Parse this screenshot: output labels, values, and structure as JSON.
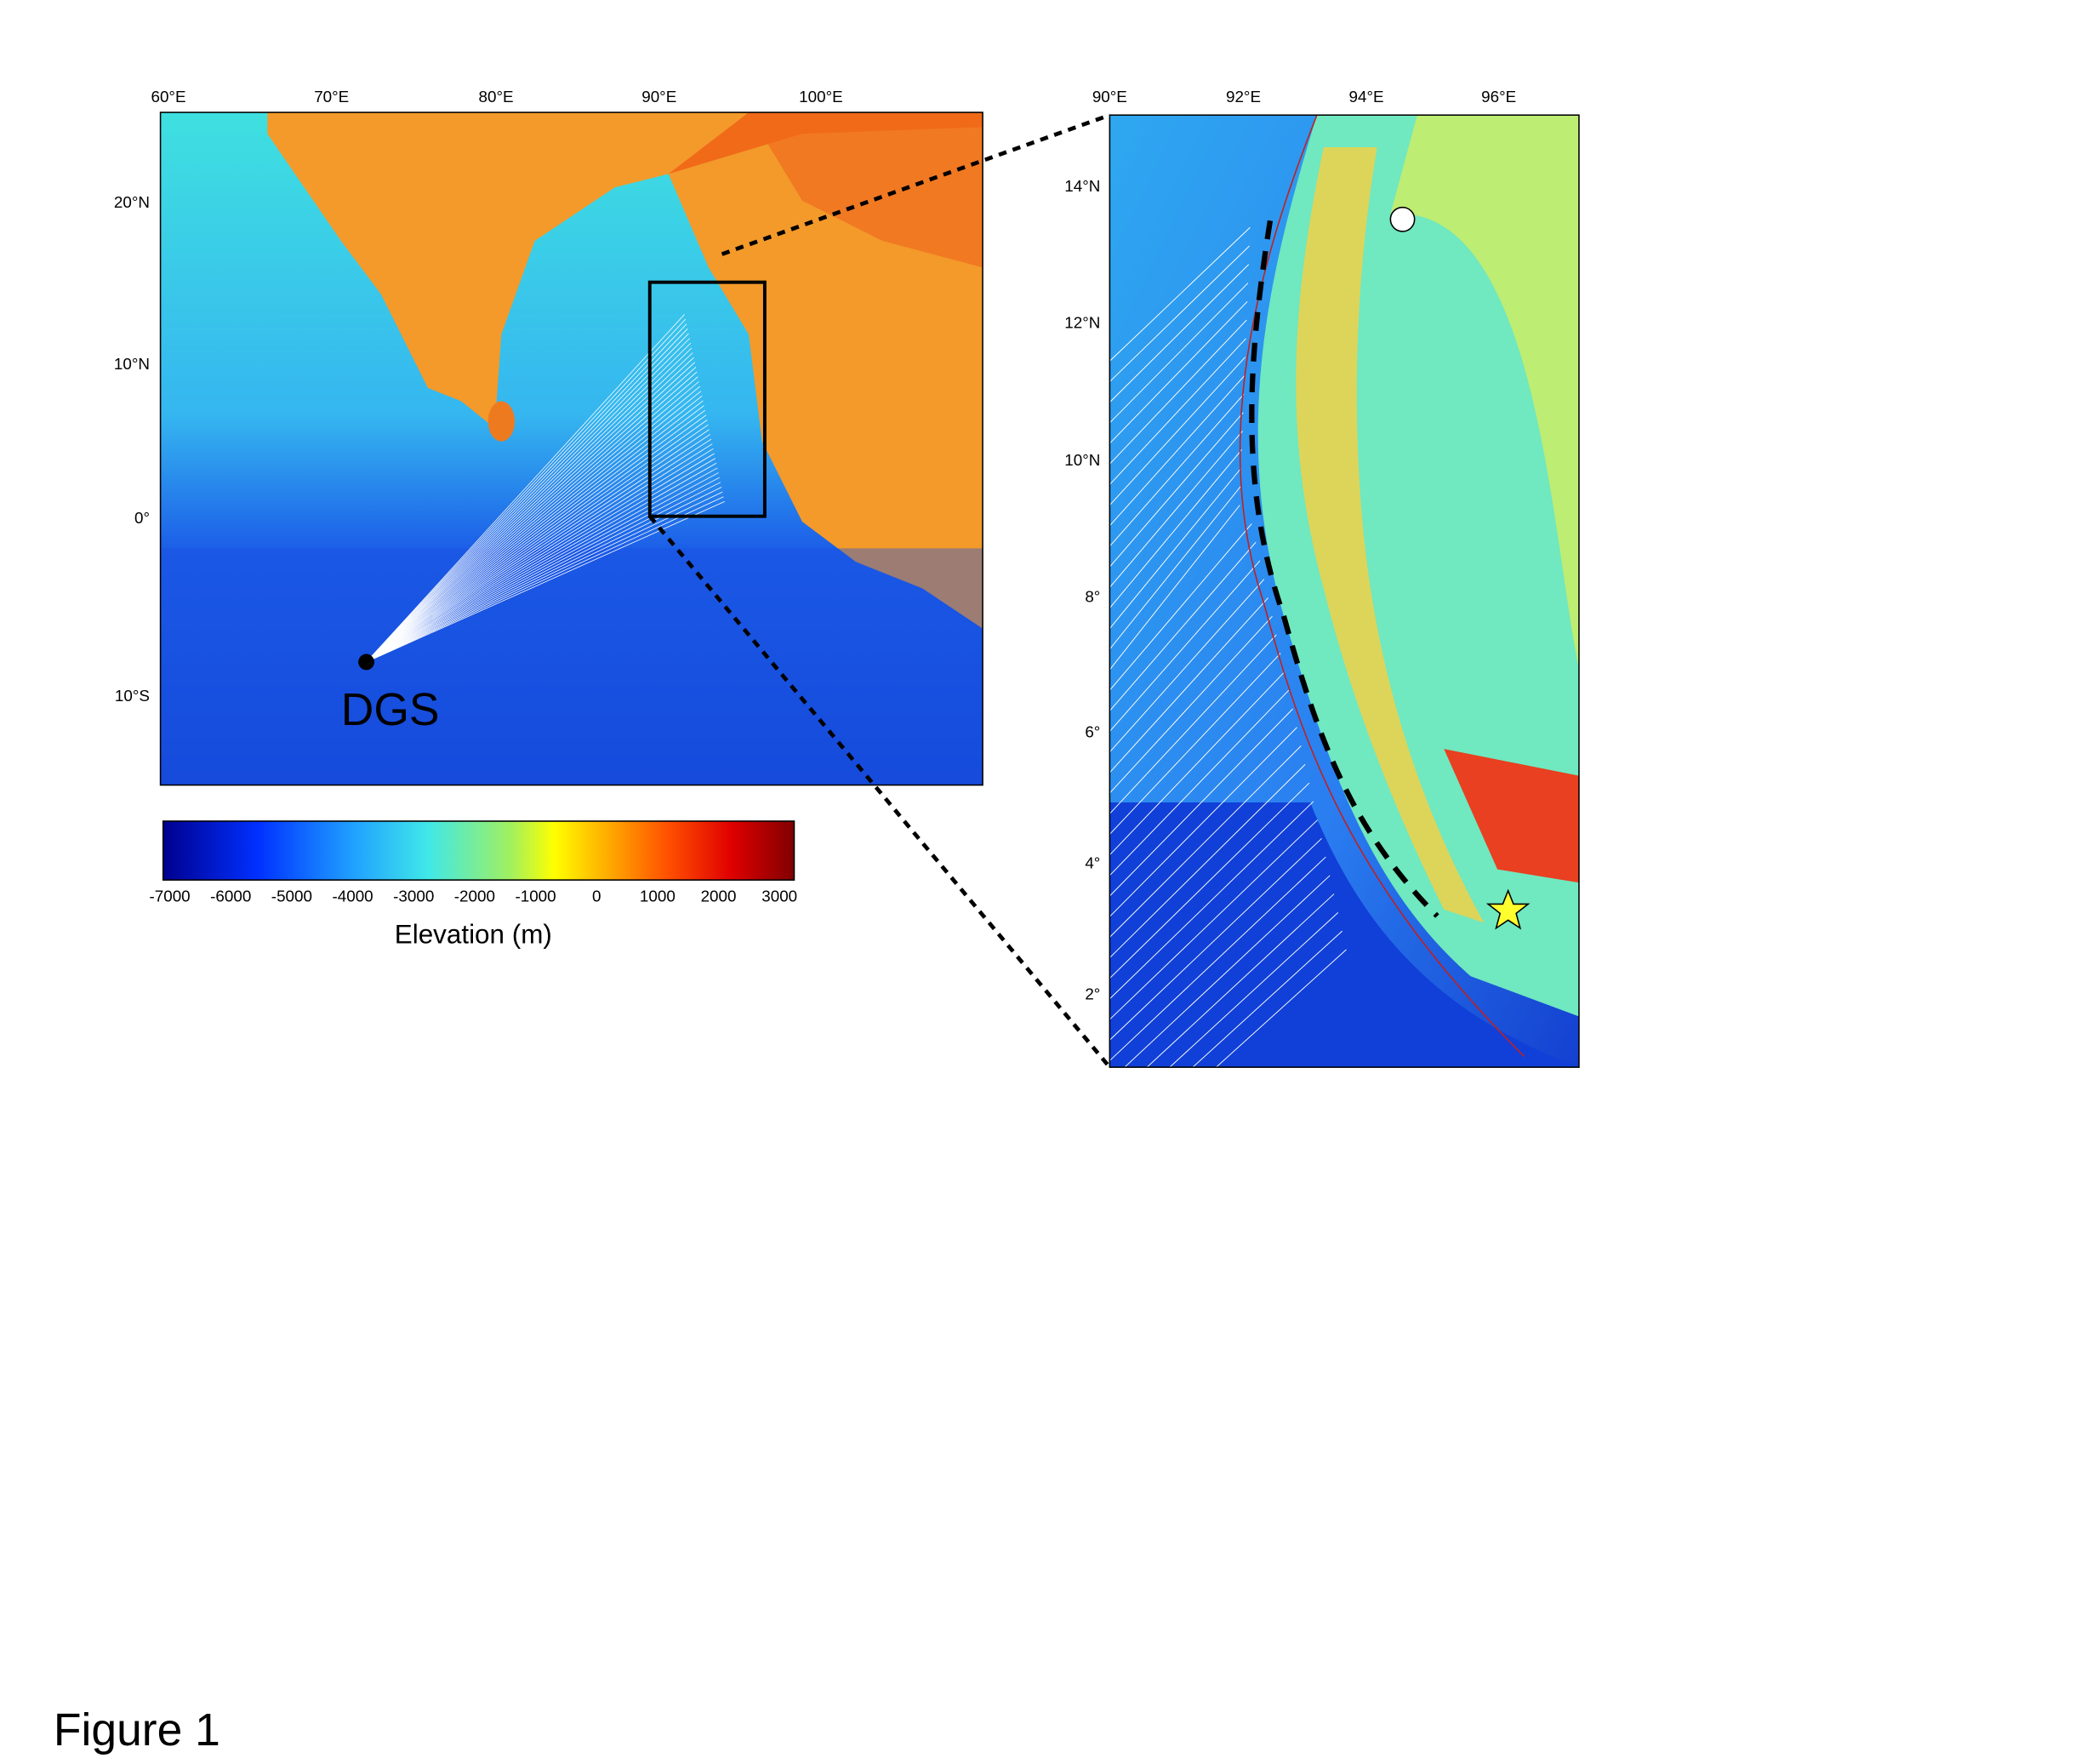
{
  "left_map": {
    "lon_labels": [
      "60°E",
      "70°E",
      "80°E",
      "90°E",
      "100°E"
    ],
    "lat_labels": [
      "20°N",
      "10°N",
      "0°",
      "10°S"
    ],
    "station": "DGS"
  },
  "right_map": {
    "lon_labels": [
      "90°E",
      "92°E",
      "94°E",
      "96°E"
    ],
    "lat_labels": [
      "14°N",
      "12°N",
      "10°N",
      "8°",
      "6°",
      "4°",
      "2°"
    ]
  },
  "colorbar": {
    "ticks": [
      -7000,
      -6000,
      -5000,
      -4000,
      -3000,
      -2000,
      -1000,
      0,
      1000,
      2000,
      3000
    ],
    "label": "Elevation (m)"
  },
  "caption": "Figure 1"
}
